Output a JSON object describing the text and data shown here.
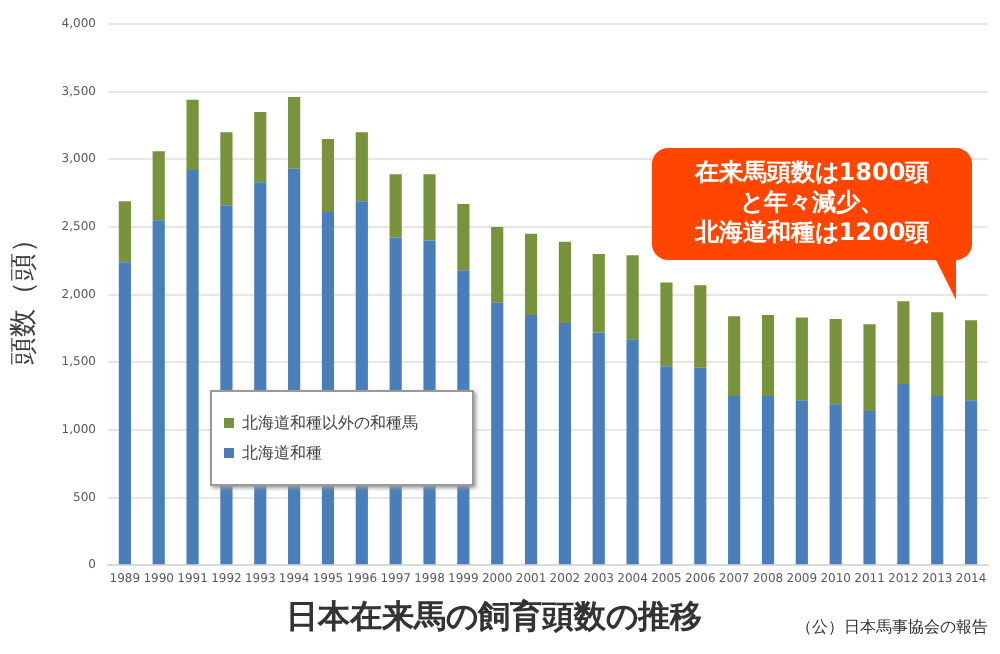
{
  "chart_data": {
    "type": "bar",
    "title": "日本在来馬の飼育頭数の推移",
    "ylabel": "頭数（頭）",
    "stacked": true,
    "grid": "y",
    "legend": "bottom left",
    "categories": [
      "1989",
      "1990",
      "1991",
      "1992",
      "1993",
      "1994",
      "1995",
      "1996",
      "1997",
      "1998",
      "1999",
      "2000",
      "2001",
      "2002",
      "2003",
      "2004",
      "2005",
      "2006",
      "2007",
      "2008",
      "2009",
      "2010",
      "2011",
      "2012",
      "2013",
      "2014"
    ],
    "series": [
      {
        "name": "北海道和種",
        "color": "#4a7ebb",
        "values": [
          2240,
          2550,
          2920,
          2660,
          2830,
          2930,
          2610,
          2690,
          2420,
          2400,
          2180,
          1940,
          1850,
          1790,
          1720,
          1670,
          1470,
          1460,
          1250,
          1250,
          1220,
          1190,
          1140,
          1340,
          1250,
          1220
        ]
      },
      {
        "name": "北海道和種以外の和種馬",
        "color": "#77933c",
        "values": [
          450,
          510,
          520,
          540,
          520,
          530,
          540,
          510,
          470,
          490,
          490,
          560,
          600,
          600,
          580,
          620,
          620,
          610,
          590,
          600,
          610,
          630,
          640,
          610,
          620,
          590
        ]
      }
    ],
    "ylim": [
      0,
      4000
    ],
    "yticks": [
      {
        "value": 0,
        "label": "0"
      },
      {
        "value": 500,
        "label": "500"
      },
      {
        "value": 1000,
        "label": "1,000"
      },
      {
        "value": 1500,
        "label": "1,500"
      },
      {
        "value": 2000,
        "label": "2,000"
      },
      {
        "value": 2500,
        "label": "2,500"
      },
      {
        "value": 3000,
        "label": "3,000"
      },
      {
        "value": 3500,
        "label": "3,500"
      },
      {
        "value": 4000,
        "label": "4,000"
      }
    ],
    "annotations": [
      "在来馬頭数は1800頭と年々減少、北海道和種は1200頭",
      "（公）日本馬事協会の報告"
    ]
  }
}
